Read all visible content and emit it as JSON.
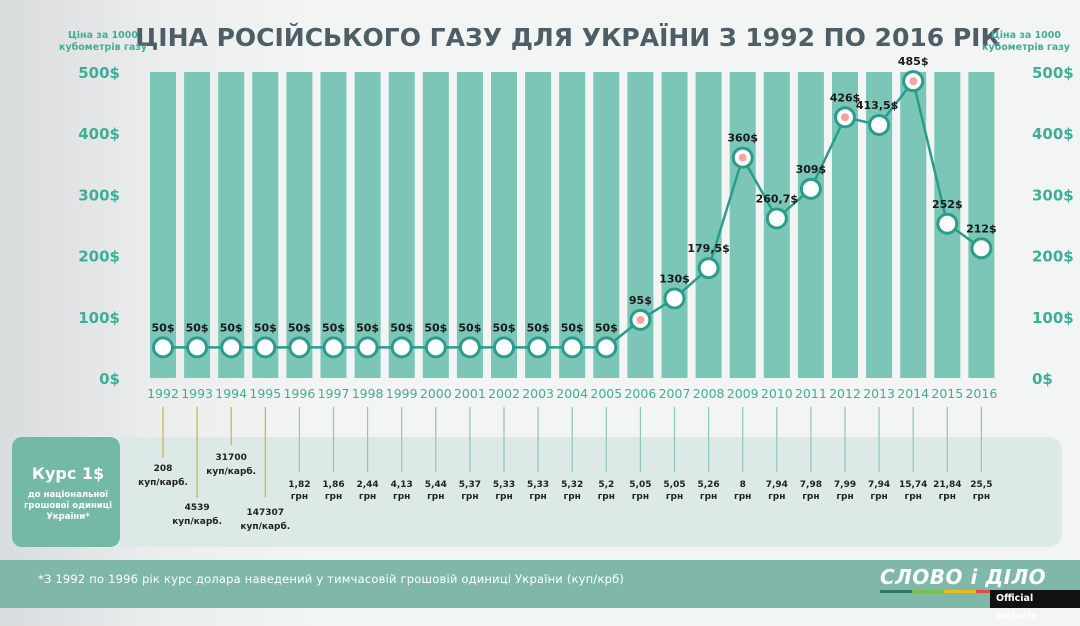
{
  "title": "ЦІНА РОСІЙСЬКОГО ГАЗУ ДЛЯ УКРАЇНИ З 1992 ПО 2016 РІК",
  "axis_caption": {
    "line1": "Ціна за 1000",
    "line2": "кубометрів газу"
  },
  "rate_box": {
    "title": "Курс 1$",
    "sub_lines": [
      "до національної",
      "грошової одиниці",
      "України*"
    ]
  },
  "footnote": "*З 1992 по 1996 рік курс долара наведений у тимчасовій грошовій одиниці України (куп/крб)",
  "logo": "СЛОВО і ДІЛО",
  "badge": "Official website",
  "colors": {
    "bar": "#7bc6b6",
    "line": "#2a9d8a",
    "accent": "#3fae98",
    "highlight_dot": "#f4a3a0"
  },
  "chart_data": {
    "type": "line",
    "title": "ЦІНА РОСІЙСЬКОГО ГАЗУ ДЛЯ УКРАЇНИ З 1992 ПО 2016 РІК",
    "ylabel": "Ціна за 1000 кубометрів газу",
    "ylim": [
      0,
      500
    ],
    "yticks": [
      "0$",
      "100$",
      "200$",
      "300$",
      "400$",
      "500$"
    ],
    "categories": [
      "1992",
      "1993",
      "1994",
      "1995",
      "1996",
      "1997",
      "1998",
      "1999",
      "2000",
      "2001",
      "2002",
      "2003",
      "2004",
      "2005",
      "2006",
      "2007",
      "2008",
      "2009",
      "2010",
      "2011",
      "2012",
      "2013",
      "2014",
      "2015",
      "2016"
    ],
    "values": [
      50,
      50,
      50,
      50,
      50,
      50,
      50,
      50,
      50,
      50,
      50,
      50,
      50,
      50,
      95,
      130,
      179.5,
      360,
      260.7,
      309,
      426,
      413.5,
      485,
      252,
      212
    ],
    "value_labels": [
      "50$",
      "50$",
      "50$",
      "50$",
      "50$",
      "50$",
      "50$",
      "50$",
      "50$",
      "50$",
      "50$",
      "50$",
      "50$",
      "50$",
      "95$",
      "130$",
      "179,5$",
      "360$",
      "260,7$",
      "309$",
      "426$",
      "413,5$",
      "485$",
      "252$",
      "212$"
    ],
    "highlighted": [
      false,
      false,
      false,
      false,
      false,
      false,
      false,
      false,
      false,
      false,
      false,
      false,
      false,
      false,
      true,
      false,
      false,
      true,
      false,
      false,
      true,
      false,
      true,
      false,
      false
    ],
    "exchange_rates": [
      {
        "value": "208",
        "unit": "куп/карб."
      },
      {
        "value": "4539",
        "unit": "куп/карб."
      },
      {
        "value": "31700",
        "unit": "куп/карб."
      },
      {
        "value": "147307",
        "unit": "куп/карб."
      },
      {
        "value": "1,82",
        "unit": "грн"
      },
      {
        "value": "1,86",
        "unit": "грн"
      },
      {
        "value": "2,44",
        "unit": "грн"
      },
      {
        "value": "4,13",
        "unit": "грн"
      },
      {
        "value": "5,44",
        "unit": "грн"
      },
      {
        "value": "5,37",
        "unit": "грн"
      },
      {
        "value": "5,33",
        "unit": "грн"
      },
      {
        "value": "5,33",
        "unit": "грн"
      },
      {
        "value": "5,32",
        "unit": "грн"
      },
      {
        "value": "5,2",
        "unit": "грн"
      },
      {
        "value": "5,05",
        "unit": "грн"
      },
      {
        "value": "5,05",
        "unit": "грн"
      },
      {
        "value": "5,26",
        "unit": "грн"
      },
      {
        "value": "8",
        "unit": "грн"
      },
      {
        "value": "7,94",
        "unit": "грн"
      },
      {
        "value": "7,98",
        "unit": "грн"
      },
      {
        "value": "7,99",
        "unit": "грн"
      },
      {
        "value": "7,94",
        "unit": "грн"
      },
      {
        "value": "15,74",
        "unit": "грн"
      },
      {
        "value": "21,84",
        "unit": "грн"
      },
      {
        "value": "25,5",
        "unit": "грн"
      }
    ],
    "grid": false,
    "legend": "none"
  }
}
